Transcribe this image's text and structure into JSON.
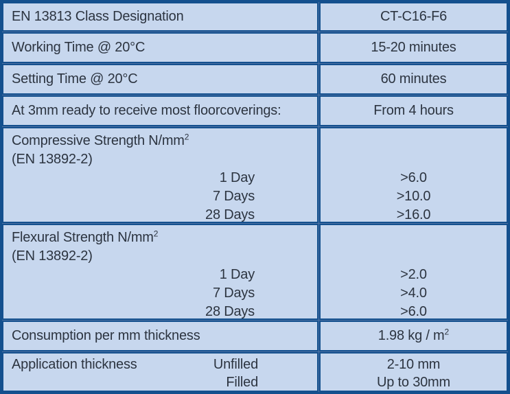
{
  "colors": {
    "cell_background": "#c7d7ee",
    "border": "#14508e",
    "divider_gap": "#4f72a3",
    "text": "#2c3440"
  },
  "table": {
    "rows": [
      {
        "label": "EN 13813 Class Designation",
        "value": "CT-C16-F6"
      },
      {
        "label": "Working Time @ 20°C",
        "value": "15-20 minutes"
      },
      {
        "label": "Setting Time @ 20°C",
        "value": "60 minutes"
      },
      {
        "label": "At 3mm ready to receive most floorcoverings:",
        "value": "From 4 hours"
      },
      {
        "title": "Compressive Strength N/mm",
        "title_sup": "2",
        "subtitle": "(EN 13892-2)",
        "entries": [
          {
            "label": "1 Day",
            "value": ">6.0"
          },
          {
            "label": "7 Days",
            "value": ">10.0"
          },
          {
            "label": "28 Days",
            "value": ">16.0"
          }
        ]
      },
      {
        "title": "Flexural Strength N/mm",
        "title_sup": "2",
        "subtitle": "(EN 13892-2)",
        "entries": [
          {
            "label": "1 Day",
            "value": ">2.0"
          },
          {
            "label": "7 Days",
            "value": ">4.0"
          },
          {
            "label": "28 Days",
            "value": ">6.0"
          }
        ]
      },
      {
        "label": "Consumption per mm thickness",
        "value": "1.98 kg / m",
        "value_sup": "2"
      },
      {
        "label": "Application thickness",
        "entries": [
          {
            "label": "Unfilled",
            "value": "2-10 mm"
          },
          {
            "label": "Filled",
            "value": "Up to 30mm"
          }
        ]
      }
    ]
  }
}
